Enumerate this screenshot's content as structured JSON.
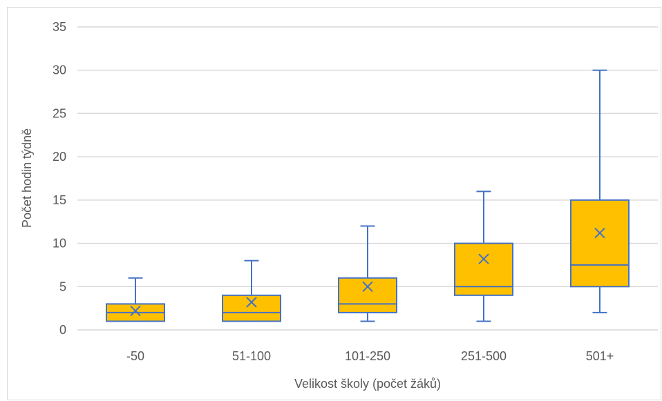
{
  "chart_data": {
    "type": "box",
    "xlabel": "Velikost školy (počet žáků)",
    "ylabel": "Počet hodin týdně",
    "ylim": [
      0,
      35
    ],
    "yticks": [
      0,
      5,
      10,
      15,
      20,
      25,
      30,
      35
    ],
    "grid": true,
    "categories": [
      "-50",
      "51-100",
      "101-250",
      "251-500",
      "501+"
    ],
    "boxes": [
      {
        "category": "-50",
        "min": 1,
        "q1": 1,
        "median": 2,
        "q3": 3,
        "max": 6,
        "mean": 2.2
      },
      {
        "category": "51-100",
        "min": 1,
        "q1": 1,
        "median": 2,
        "q3": 4,
        "max": 8,
        "mean": 3.2
      },
      {
        "category": "101-250",
        "min": 1,
        "q1": 2,
        "median": 3,
        "q3": 6,
        "max": 12,
        "mean": 5.0
      },
      {
        "category": "251-500",
        "min": 1,
        "q1": 4,
        "median": 5,
        "q3": 10,
        "max": 16,
        "mean": 8.2
      },
      {
        "category": "501+",
        "min": 2,
        "q1": 5,
        "median": 7.5,
        "q3": 15,
        "max": 30,
        "mean": 11.2
      }
    ],
    "colors": {
      "box_fill": "#FFC000",
      "box_stroke": "#4472C4",
      "grid": "#d9d9d9",
      "text": "#595959"
    }
  }
}
